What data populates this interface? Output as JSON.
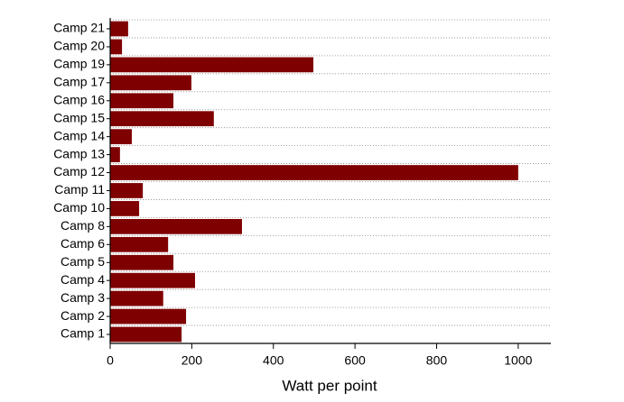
{
  "chart_data": {
    "type": "bar",
    "orientation": "horizontal",
    "x_label": "Watt per point",
    "categories": [
      "Camp 1",
      "Camp 2",
      "Camp 3",
      "Camp 4",
      "Camp 5",
      "Camp 6",
      "Camp 8",
      "Camp 10",
      "Camp 11",
      "Camp 12",
      "Camp 13",
      "Camp 14",
      "Camp 15",
      "Camp 16",
      "Camp 17",
      "Camp 19",
      "Camp 20",
      "Camp 21"
    ],
    "values": [
      175,
      186,
      130,
      208,
      155,
      142,
      323,
      71,
      80,
      1000,
      24,
      53,
      254,
      155,
      199,
      498,
      29,
      44
    ],
    "color": "#7f0000",
    "xlim": [
      0,
      1080
    ],
    "xticks": [
      0,
      200,
      400,
      600,
      800,
      1000
    ],
    "grid": true
  }
}
